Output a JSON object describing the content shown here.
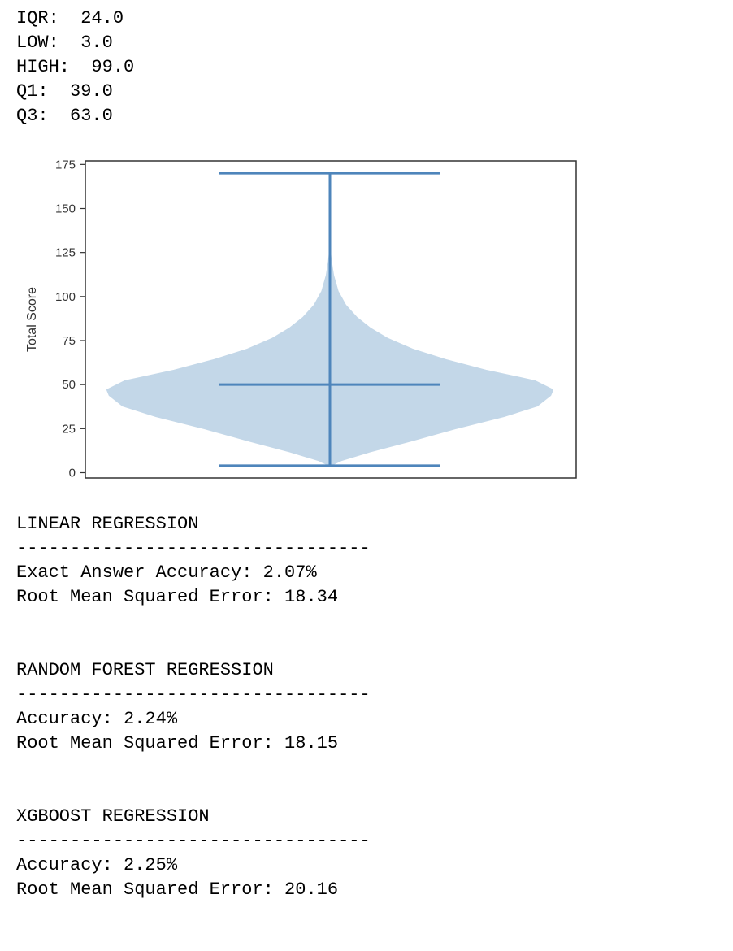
{
  "stats": [
    {
      "label": "IQR:",
      "value": "24.0"
    },
    {
      "label": "LOW:",
      "value": "3.0"
    },
    {
      "label": "HIGH:",
      "value": "99.0"
    },
    {
      "label": "Q1:",
      "value": "39.0"
    },
    {
      "label": "Q3:",
      "value": "63.0"
    }
  ],
  "chart_data": {
    "type": "violin",
    "ylabel": "Total Score",
    "xlabel": "",
    "ylim": [
      -3,
      177
    ],
    "yticks": [
      0,
      25,
      50,
      75,
      100,
      125,
      150,
      175
    ],
    "min": 4,
    "max": 170,
    "mean": 50,
    "grid": false,
    "colors": {
      "body": "#c3d7e8",
      "lines": "#4e85bb"
    },
    "density": [
      {
        "y": 4,
        "w": 0.0
      },
      {
        "y": 7,
        "w": 0.05
      },
      {
        "y": 12,
        "w": 0.18
      },
      {
        "y": 18,
        "w": 0.36
      },
      {
        "y": 25,
        "w": 0.56
      },
      {
        "y": 32,
        "w": 0.78
      },
      {
        "y": 38,
        "w": 0.93
      },
      {
        "y": 44,
        "w": 0.99
      },
      {
        "y": 47,
        "w": 1.0
      },
      {
        "y": 52,
        "w": 0.92
      },
      {
        "y": 58,
        "w": 0.7
      },
      {
        "y": 64,
        "w": 0.52
      },
      {
        "y": 70,
        "w": 0.37
      },
      {
        "y": 76,
        "w": 0.26
      },
      {
        "y": 82,
        "w": 0.18
      },
      {
        "y": 88,
        "w": 0.12
      },
      {
        "y": 95,
        "w": 0.07
      },
      {
        "y": 103,
        "w": 0.035
      },
      {
        "y": 112,
        "w": 0.015
      },
      {
        "y": 120,
        "w": 0.005
      },
      {
        "y": 126,
        "w": 0.0
      }
    ]
  },
  "results": [
    {
      "title": "LINEAR REGRESSION",
      "divider": "---------------------------------",
      "lines": [
        "Exact Answer Accuracy: 2.07%",
        "Root Mean Squared Error: 18.34"
      ]
    },
    {
      "title": "RANDOM FOREST REGRESSION",
      "divider": "---------------------------------",
      "lines": [
        "Accuracy: 2.24%",
        "Root Mean Squared Error: 18.15"
      ]
    },
    {
      "title": "XGBOOST REGRESSION",
      "divider": "---------------------------------",
      "lines": [
        "Accuracy: 2.25%",
        "Root Mean Squared Error: 20.16"
      ]
    }
  ]
}
